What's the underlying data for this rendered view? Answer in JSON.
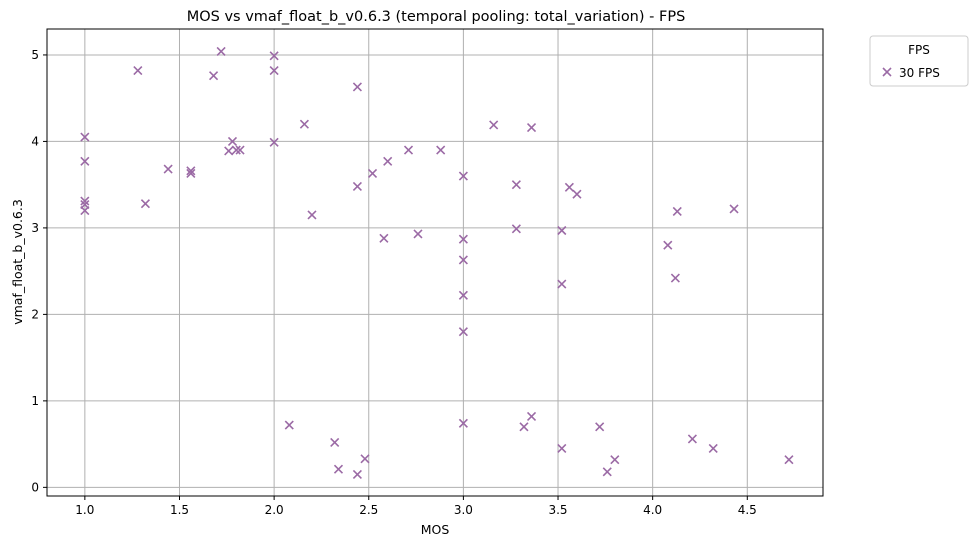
{
  "chart_data": {
    "type": "scatter",
    "title": "MOS vs vmaf_float_b_v0.6.3 (temporal pooling: total_variation) - FPS",
    "xlabel": "MOS",
    "ylabel": "vmaf_float_b_v0.6.3",
    "xlim": [
      0.8,
      4.9
    ],
    "ylim": [
      -0.1,
      5.3
    ],
    "xticks": [
      1.0,
      1.5,
      2.0,
      2.5,
      3.0,
      3.5,
      4.0,
      4.5
    ],
    "xtick_labels": [
      "1.0",
      "1.5",
      "2.0",
      "2.5",
      "3.0",
      "3.5",
      "4.0",
      "4.5"
    ],
    "yticks": [
      0,
      1,
      2,
      3,
      4,
      5
    ],
    "ytick_labels": [
      "0",
      "1",
      "2",
      "3",
      "4",
      "5"
    ],
    "grid": true,
    "legend": {
      "title": "FPS",
      "placement": "outside-top-right"
    },
    "series": [
      {
        "name": "30 FPS",
        "color": "#9b6aa5",
        "marker": "x",
        "points": [
          [
            1.0,
            4.05
          ],
          [
            1.0,
            3.77
          ],
          [
            1.0,
            3.31
          ],
          [
            1.0,
            3.27
          ],
          [
            1.0,
            3.2
          ],
          [
            1.28,
            4.82
          ],
          [
            1.32,
            3.28
          ],
          [
            1.44,
            3.68
          ],
          [
            1.56,
            3.66
          ],
          [
            1.56,
            3.63
          ],
          [
            1.68,
            4.76
          ],
          [
            1.72,
            5.04
          ],
          [
            1.76,
            3.89
          ],
          [
            1.78,
            4.0
          ],
          [
            1.8,
            3.9
          ],
          [
            1.82,
            3.9
          ],
          [
            2.0,
            4.99
          ],
          [
            2.0,
            4.82
          ],
          [
            2.0,
            3.99
          ],
          [
            2.08,
            0.72
          ],
          [
            2.16,
            4.2
          ],
          [
            2.2,
            3.15
          ],
          [
            2.32,
            0.52
          ],
          [
            2.34,
            0.21
          ],
          [
            2.44,
            4.63
          ],
          [
            2.44,
            3.48
          ],
          [
            2.44,
            0.15
          ],
          [
            2.48,
            0.33
          ],
          [
            2.52,
            3.63
          ],
          [
            2.58,
            2.88
          ],
          [
            2.6,
            3.77
          ],
          [
            2.71,
            3.9
          ],
          [
            2.76,
            2.93
          ],
          [
            2.88,
            3.9
          ],
          [
            3.0,
            3.6
          ],
          [
            3.0,
            2.87
          ],
          [
            3.0,
            2.63
          ],
          [
            3.0,
            2.22
          ],
          [
            3.0,
            1.8
          ],
          [
            3.0,
            0.74
          ],
          [
            3.16,
            4.19
          ],
          [
            3.28,
            3.5
          ],
          [
            3.28,
            2.99
          ],
          [
            3.32,
            0.7
          ],
          [
            3.36,
            4.16
          ],
          [
            3.36,
            0.82
          ],
          [
            3.52,
            2.97
          ],
          [
            3.52,
            2.35
          ],
          [
            3.52,
            0.45
          ],
          [
            3.56,
            3.47
          ],
          [
            3.6,
            3.39
          ],
          [
            3.72,
            0.7
          ],
          [
            3.76,
            0.18
          ],
          [
            3.8,
            0.32
          ],
          [
            4.08,
            2.8
          ],
          [
            4.12,
            2.42
          ],
          [
            4.13,
            3.19
          ],
          [
            4.21,
            0.56
          ],
          [
            4.32,
            0.45
          ],
          [
            4.43,
            3.22
          ],
          [
            4.72,
            0.32
          ]
        ]
      }
    ]
  }
}
